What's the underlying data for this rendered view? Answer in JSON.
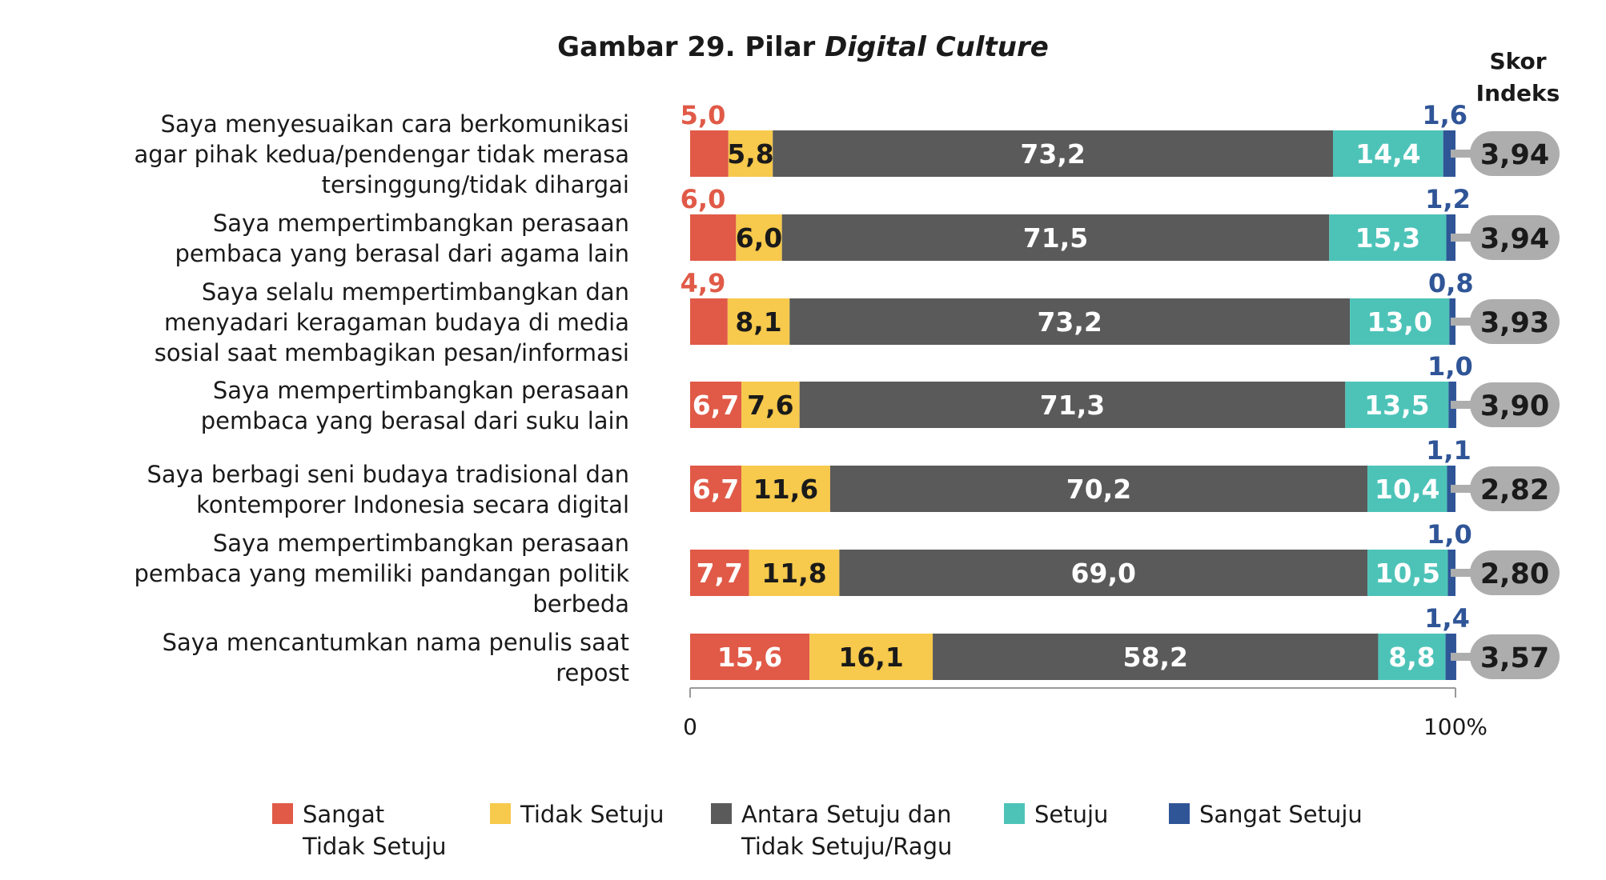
{
  "chart_data": {
    "type": "bar",
    "orientation": "horizontal",
    "stacked": true,
    "title_prefix": "Gambar 29. Pilar ",
    "title_italic": "Digital Culture",
    "score_header": [
      "Skor",
      "Indeks"
    ],
    "xlim": [
      0,
      100
    ],
    "x_tick_labels": [
      "0",
      "100%"
    ],
    "grid": false,
    "legend_position": "bottom",
    "colors": {
      "sangat_tidak_setuju": "#E05A47",
      "tidak_setuju": "#F7C94C",
      "ragu": "#5A5A5A",
      "setuju": "#4DC3B8",
      "sangat_setuju": "#2F5597",
      "score_pill": "#ADADAD"
    },
    "series": [
      {
        "key": "sangat_tidak_setuju",
        "name": "Sangat Tidak Setuju",
        "legend_lines": [
          "Sangat",
          "Tidak Setuju"
        ],
        "label_color": "#ffffff",
        "values": [
          5.0,
          6.0,
          4.9,
          6.7,
          6.7,
          7.7,
          15.6
        ],
        "labels": [
          "5,0",
          "6,0",
          "4,9",
          "6,7",
          "6,7",
          "7,7",
          "15,6"
        ]
      },
      {
        "key": "tidak_setuju",
        "name": "Tidak Setuju",
        "legend_lines": [
          "Tidak Setuju"
        ],
        "label_color": "#1a1a1a",
        "values": [
          5.8,
          6.0,
          8.1,
          7.6,
          11.6,
          11.8,
          16.1
        ],
        "labels": [
          "5,8",
          "6,0",
          "8,1",
          "7,6",
          "11,6",
          "11,8",
          "16,1"
        ]
      },
      {
        "key": "ragu",
        "name": "Antara Setuju dan Tidak Setuju/Ragu",
        "legend_lines": [
          "Antara Setuju dan",
          "Tidak Setuju/Ragu"
        ],
        "label_color": "#ffffff",
        "values": [
          73.2,
          71.5,
          73.2,
          71.3,
          70.2,
          69.0,
          58.2
        ],
        "labels": [
          "73,2",
          "71,5",
          "73,2",
          "71,3",
          "70,2",
          "69,0",
          "58,2"
        ]
      },
      {
        "key": "setuju",
        "name": "Setuju",
        "legend_lines": [
          "Setuju"
        ],
        "label_color": "#ffffff",
        "values": [
          14.4,
          15.3,
          13.0,
          13.5,
          10.4,
          10.5,
          8.8
        ],
        "labels": [
          "14,4",
          "15,3",
          "13,0",
          "13,5",
          "10,4",
          "10,5",
          "8,8"
        ]
      },
      {
        "key": "sangat_setuju",
        "name": "Sangat Setuju",
        "legend_lines": [
          "Sangat Setuju"
        ],
        "label_color": "#2F5597",
        "values": [
          1.6,
          1.2,
          0.8,
          1.0,
          1.1,
          1.0,
          1.4
        ],
        "labels": [
          "1,6",
          "1,2",
          "0,8",
          "1,0",
          "1,1",
          "1,0",
          "1,4"
        ]
      }
    ],
    "categories": [
      {
        "lines": [
          "Saya menyesuaikan cara berkomunikasi",
          "agar pihak kedua/pendengar tidak merasa",
          "tersinggung/tidak dihargai"
        ],
        "score": "3,94"
      },
      {
        "lines": [
          "Saya mempertimbangkan perasaan",
          "pembaca yang berasal dari agama lain"
        ],
        "score": "3,94"
      },
      {
        "lines": [
          "Saya selalu mempertimbangkan dan",
          "menyadari keragaman budaya  di media",
          "sosial saat membagikan pesan/informasi"
        ],
        "score": "3,93"
      },
      {
        "lines": [
          "Saya mempertimbangkan perasaan",
          "pembaca yang berasal dari suku lain"
        ],
        "score": "3,90"
      },
      {
        "lines": [
          "Saya  berbagi seni budaya tradisional dan",
          "kontemporer Indonesia secara digital"
        ],
        "score": "2,82"
      },
      {
        "lines": [
          "Saya mempertimbangkan perasaan",
          "pembaca yang memiliki pandangan politik",
          "berbeda"
        ],
        "score": "2,80"
      },
      {
        "lines": [
          "Saya mencantumkan nama penulis saat",
          "repost"
        ],
        "score": "3,57"
      }
    ]
  }
}
